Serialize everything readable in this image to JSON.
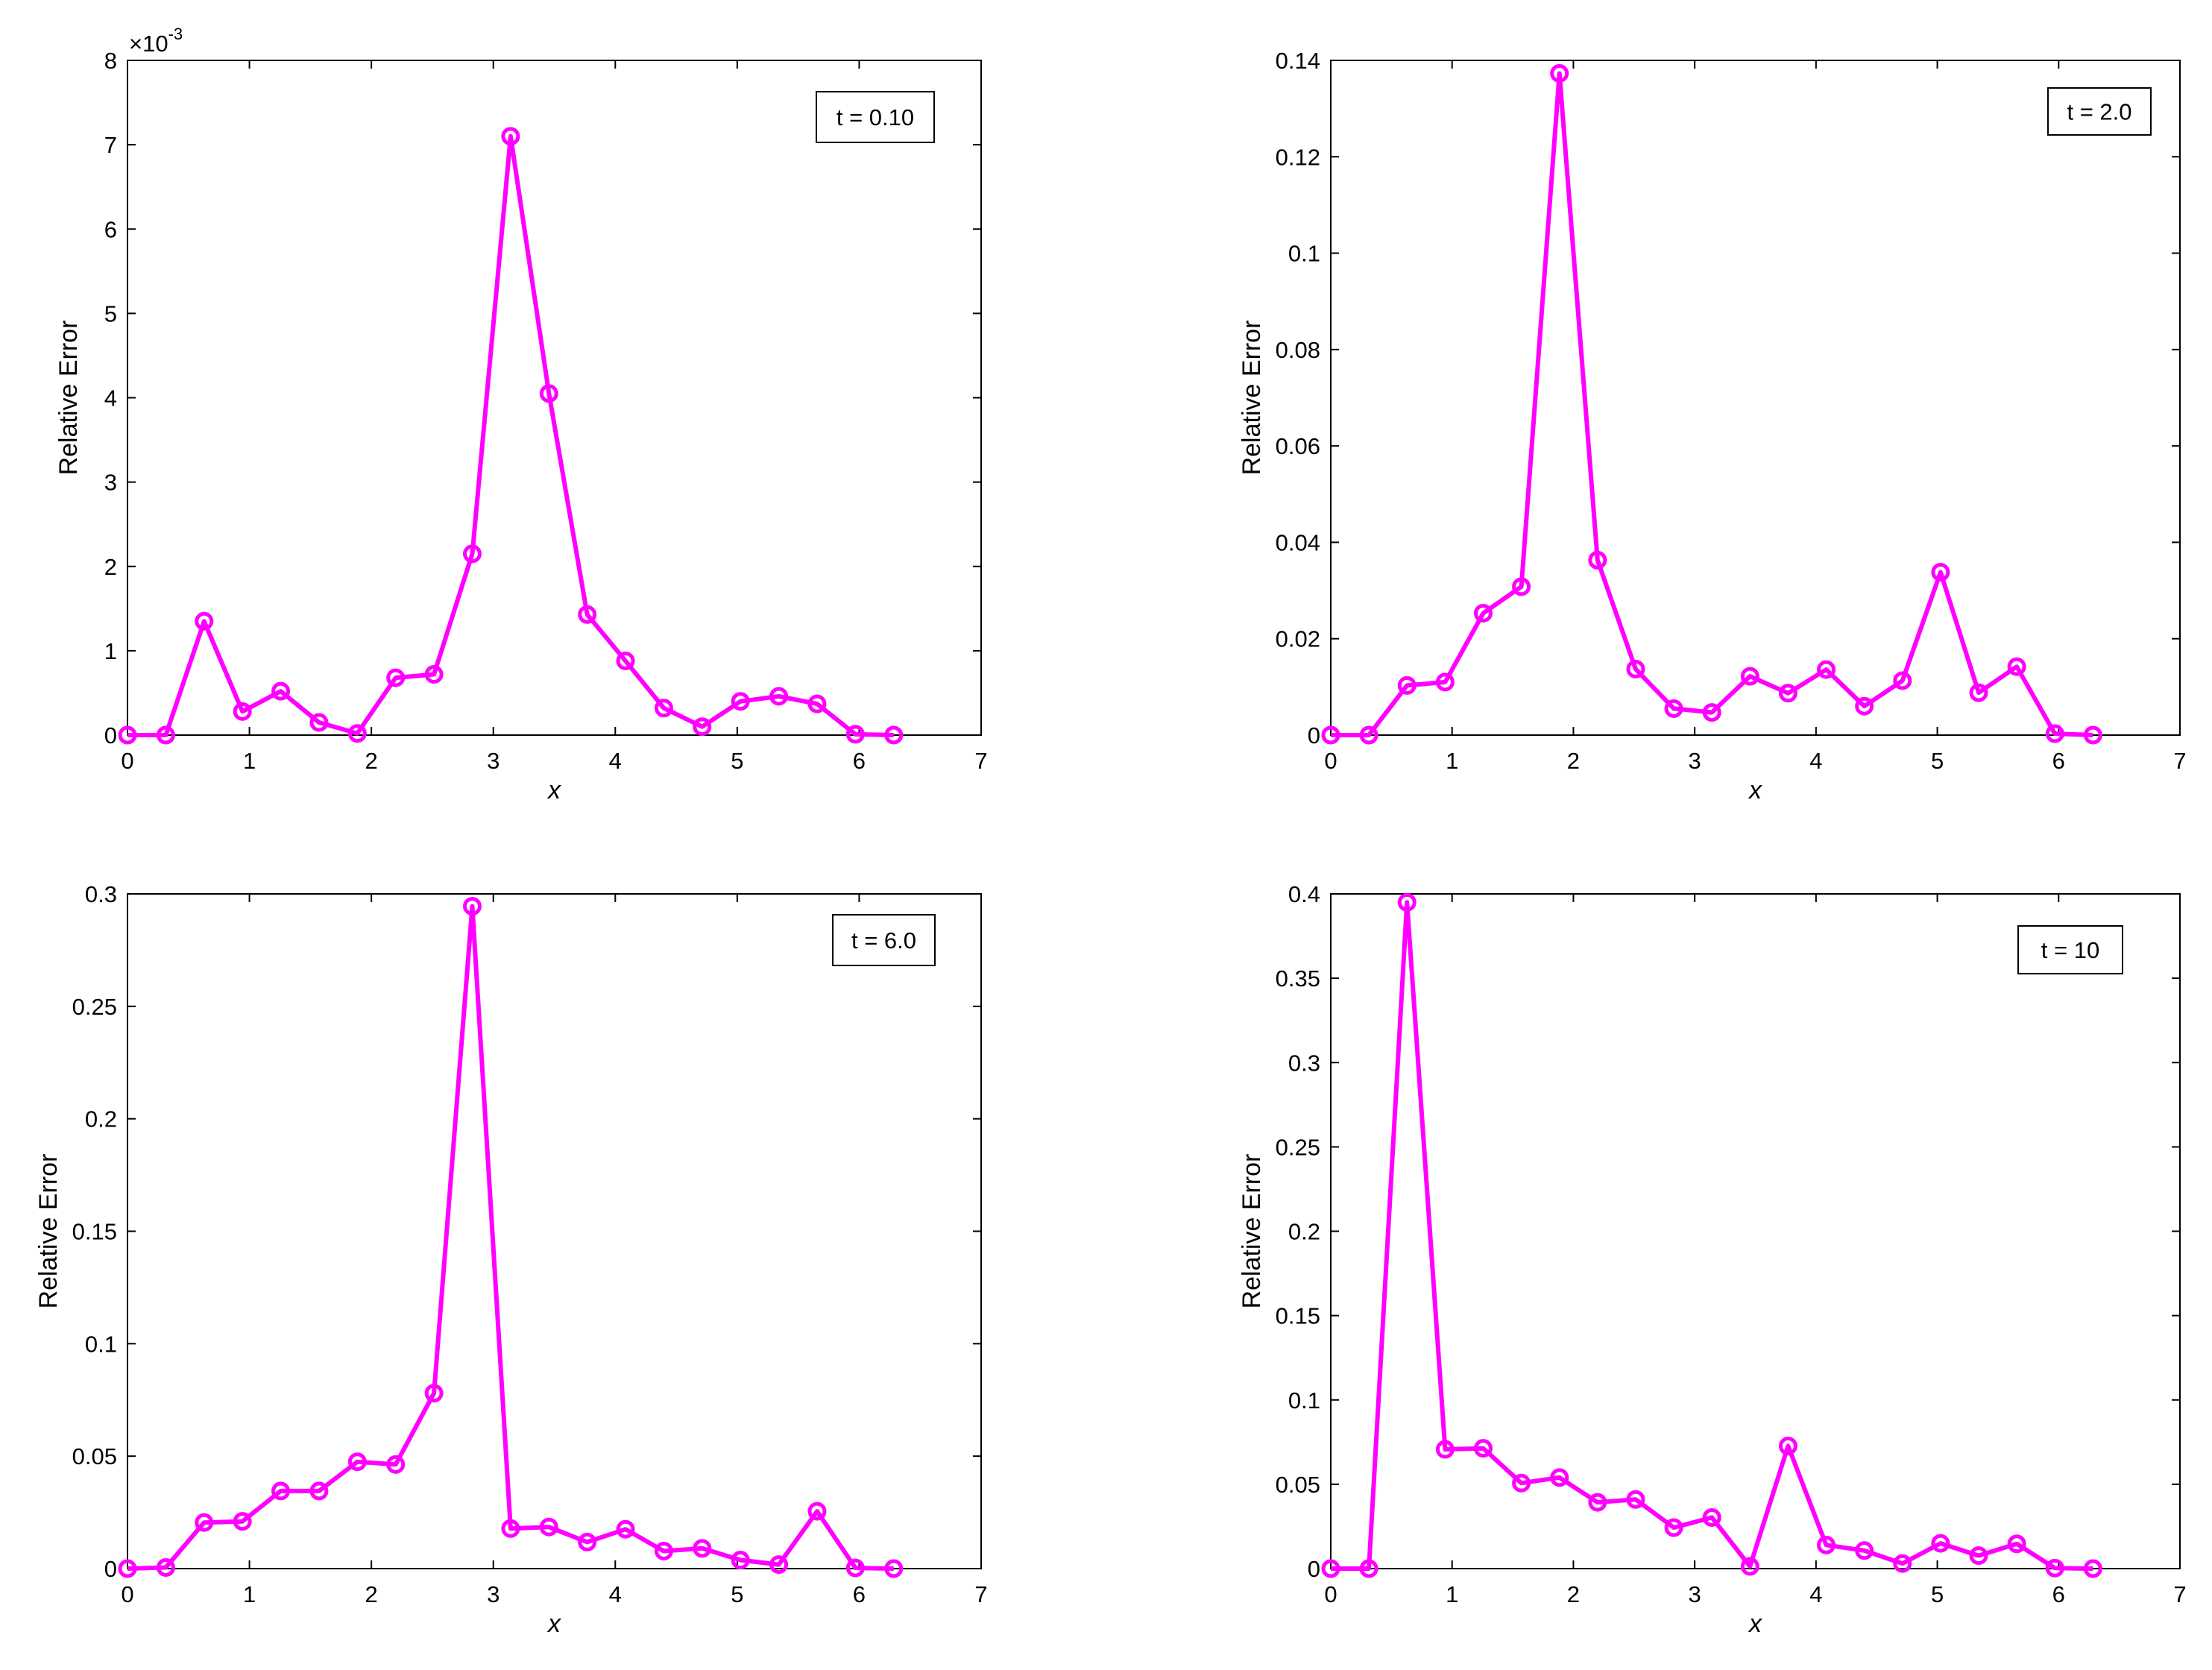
{
  "colors": {
    "series": "#ff00ff",
    "axes": "#000000",
    "background": "#ffffff"
  },
  "chart_data": [
    {
      "type": "line",
      "title": "",
      "xlabel": "x",
      "ylabel": "Relative Error",
      "xlim": [
        0,
        7
      ],
      "ylim": [
        0,
        0.008
      ],
      "xticks": [
        0,
        1,
        2,
        3,
        4,
        5,
        6,
        7
      ],
      "yticks": [
        0,
        0.001,
        0.002,
        0.003,
        0.004,
        0.005,
        0.006,
        0.007,
        0.008
      ],
      "ytick_labels": [
        "0",
        "1",
        "2",
        "3",
        "4",
        "5",
        "6",
        "7",
        "8"
      ],
      "y_exponent": {
        "base": "×10",
        "power": "-3"
      },
      "grid": false,
      "legend_position": "top-right",
      "legend_text": "t = 0.10",
      "x": [
        0,
        0.3142,
        0.6283,
        0.9425,
        1.2566,
        1.5708,
        1.885,
        2.1991,
        2.5133,
        2.8274,
        3.1416,
        3.4558,
        3.7699,
        4.0841,
        4.3982,
        4.7124,
        5.0265,
        5.3407,
        5.6549,
        5.969,
        6.2832
      ],
      "series": [
        {
          "marker": "circle",
          "values": [
            0,
            0,
            0.00135,
            0.00028,
            0.00052,
            0.00015,
            2e-05,
            0.00068,
            0.00072,
            0.00215,
            0.0071,
            0.00405,
            0.00143,
            0.00088,
            0.00032,
            0.0001,
            0.0004,
            0.00046,
            0.00037,
            1e-05,
            0
          ]
        }
      ]
    },
    {
      "type": "line",
      "title": "",
      "xlabel": "x",
      "ylabel": "Relative Error",
      "xlim": [
        0,
        7
      ],
      "ylim": [
        0,
        0.14
      ],
      "xticks": [
        0,
        1,
        2,
        3,
        4,
        5,
        6,
        7
      ],
      "yticks": [
        0,
        0.02,
        0.04,
        0.06,
        0.08,
        0.1,
        0.12,
        0.14
      ],
      "ytick_labels": [
        "0",
        "0.02",
        "0.04",
        "0.06",
        "0.08",
        "0.1",
        "0.12",
        "0.14"
      ],
      "grid": false,
      "legend_position": "top-right",
      "legend_text": "t = 2.0",
      "x": [
        0,
        0.3142,
        0.6283,
        0.9425,
        1.2566,
        1.5708,
        1.885,
        2.1991,
        2.5133,
        2.8274,
        3.1416,
        3.4558,
        3.7699,
        4.0841,
        4.3982,
        4.7124,
        5.0265,
        5.3407,
        5.6549,
        5.969,
        6.2832
      ],
      "series": [
        {
          "marker": "circle",
          "values": [
            0,
            0,
            0.0103,
            0.011,
            0.0253,
            0.0308,
            0.1373,
            0.0363,
            0.0137,
            0.0055,
            0.0047,
            0.0122,
            0.0087,
            0.0136,
            0.006,
            0.0113,
            0.0338,
            0.0088,
            0.0142,
            0.0003,
            0
          ]
        }
      ]
    },
    {
      "type": "line",
      "title": "",
      "xlabel": "x",
      "ylabel": "Relative Error",
      "xlim": [
        0,
        7
      ],
      "ylim": [
        0,
        0.3
      ],
      "xticks": [
        0,
        1,
        2,
        3,
        4,
        5,
        6,
        7
      ],
      "yticks": [
        0,
        0.05,
        0.1,
        0.15,
        0.2,
        0.25,
        0.3
      ],
      "ytick_labels": [
        "0",
        "0.05",
        "0.1",
        "0.15",
        "0.2",
        "0.25",
        "0.3"
      ],
      "grid": false,
      "legend_position": "top-right",
      "legend_text": "t = 6.0",
      "x": [
        0,
        0.3142,
        0.6283,
        0.9425,
        1.2566,
        1.5708,
        1.885,
        2.1991,
        2.5133,
        2.8274,
        3.1416,
        3.4558,
        3.7699,
        4.0841,
        4.3982,
        4.7124,
        5.0265,
        5.3407,
        5.6549,
        5.969,
        6.2832
      ],
      "series": [
        {
          "marker": "circle",
          "values": [
            0,
            0.0005,
            0.0205,
            0.021,
            0.0345,
            0.0345,
            0.0475,
            0.0463,
            0.078,
            0.2945,
            0.0178,
            0.0185,
            0.0118,
            0.0175,
            0.0078,
            0.009,
            0.0038,
            0.0018,
            0.0255,
            0.0003,
            0
          ]
        }
      ]
    },
    {
      "type": "line",
      "title": "",
      "xlabel": "x",
      "ylabel": "Relative Error",
      "xlim": [
        0,
        7
      ],
      "ylim": [
        0,
        0.4
      ],
      "xticks": [
        0,
        1,
        2,
        3,
        4,
        5,
        6,
        7
      ],
      "yticks": [
        0,
        0.05,
        0.1,
        0.15,
        0.2,
        0.25,
        0.3,
        0.35,
        0.4
      ],
      "ytick_labels": [
        "0",
        "0.05",
        "0.1",
        "0.15",
        "0.2",
        "0.25",
        "0.3",
        "0.35",
        "0.4"
      ],
      "grid": false,
      "legend_position": "top-right",
      "legend_text": "t = 10",
      "x": [
        0,
        0.3142,
        0.6283,
        0.9425,
        1.2566,
        1.5708,
        1.885,
        2.1991,
        2.5133,
        2.8274,
        3.1416,
        3.4558,
        3.7699,
        4.0841,
        4.3982,
        4.7124,
        5.0265,
        5.3407,
        5.6549,
        5.969,
        6.2832
      ],
      "series": [
        {
          "marker": "circle",
          "values": [
            0,
            0,
            0.395,
            0.0707,
            0.0713,
            0.0507,
            0.054,
            0.0393,
            0.041,
            0.0243,
            0.0303,
            0.0013,
            0.0727,
            0.014,
            0.0107,
            0.003,
            0.015,
            0.0077,
            0.0147,
            0.0003,
            0
          ]
        }
      ]
    }
  ]
}
